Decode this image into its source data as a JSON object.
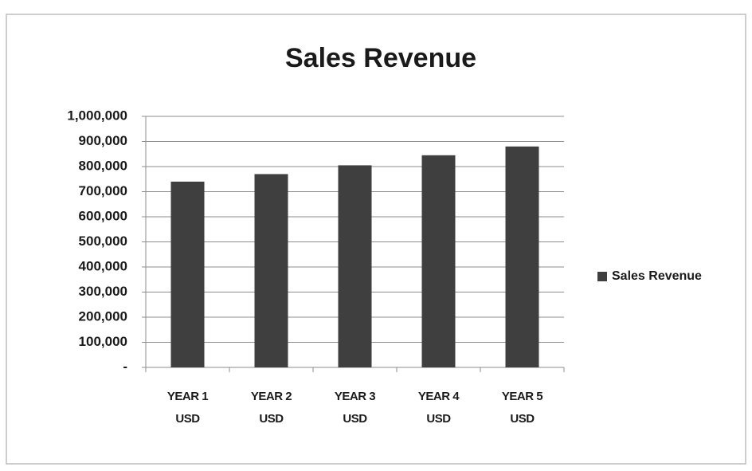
{
  "chart_data": {
    "type": "bar",
    "title": "Sales Revenue",
    "categories": [
      "YEAR 1 USD",
      "YEAR 2 USD",
      "YEAR 3 USD",
      "YEAR 4 USD",
      "YEAR 5 USD"
    ],
    "series": [
      {
        "name": "Sales Revenue",
        "color": "#3f3f3f",
        "values": [
          740000,
          770000,
          805000,
          845000,
          880000
        ]
      }
    ],
    "ylim": [
      0,
      1000000
    ],
    "yticks": [
      {
        "value": 0,
        "label": "-"
      },
      {
        "value": 100000,
        "label": "100,000"
      },
      {
        "value": 200000,
        "label": "200,000"
      },
      {
        "value": 300000,
        "label": "300,000"
      },
      {
        "value": 400000,
        "label": "400,000"
      },
      {
        "value": 500000,
        "label": "500,000"
      },
      {
        "value": 600000,
        "label": "600,000"
      },
      {
        "value": 700000,
        "label": "700,000"
      },
      {
        "value": 800000,
        "label": "800,000"
      },
      {
        "value": 900000,
        "label": "900,000"
      },
      {
        "value": 1000000,
        "label": "1,000,000"
      }
    ],
    "grid": true,
    "legend": "right"
  }
}
